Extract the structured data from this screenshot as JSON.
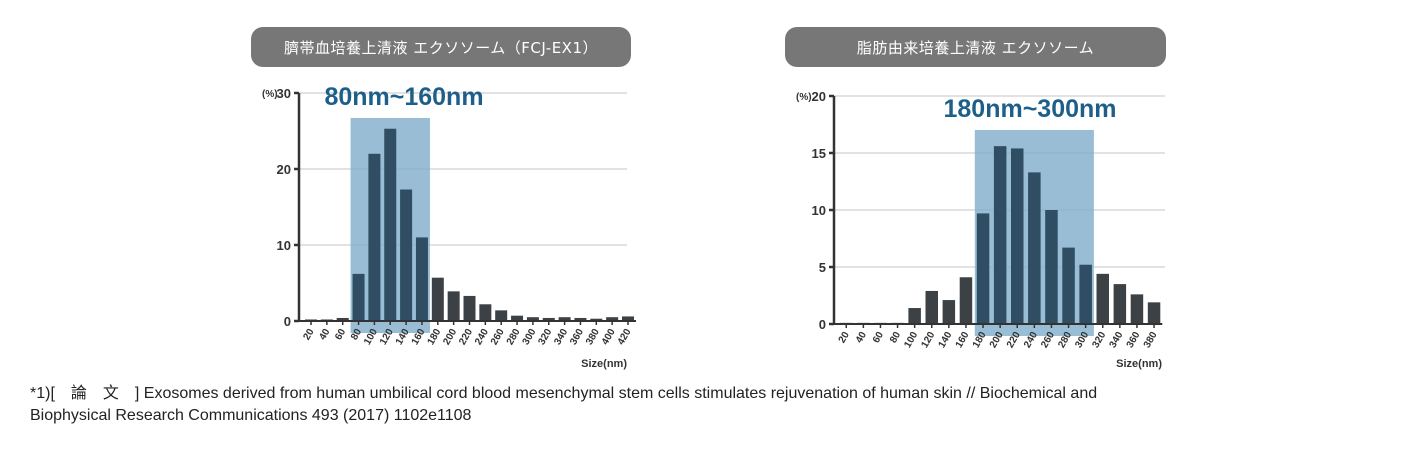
{
  "chart_data": [
    {
      "type": "bar",
      "title": "臍帯血培養上清液 エクソソーム（FCJ-EX1）",
      "unit_label": "(%)",
      "xlabel": "Size(nm)",
      "highlight_label": "80nm~160nm",
      "highlight_range": [
        80,
        160
      ],
      "ylim": [
        0,
        30
      ],
      "yticks": [
        0,
        10,
        20,
        30
      ],
      "categories": [
        "20",
        "40",
        "60",
        "80",
        "100",
        "120",
        "140",
        "160",
        "180",
        "200",
        "220",
        "240",
        "260",
        "280",
        "300",
        "320",
        "340",
        "360",
        "380",
        "400",
        "420"
      ],
      "values": [
        0.2,
        0.2,
        0.4,
        6.2,
        22.0,
        25.3,
        17.3,
        11.0,
        5.7,
        3.9,
        3.3,
        2.2,
        1.4,
        0.7,
        0.5,
        0.4,
        0.5,
        0.4,
        0.3,
        0.5,
        0.6
      ],
      "grid": true
    },
    {
      "type": "bar",
      "title": "脂肪由来培養上清液 エクソソーム",
      "unit_label": "(%)",
      "xlabel": "Size(nm)",
      "highlight_label": "180nm~300nm",
      "highlight_range": [
        180,
        300
      ],
      "ylim": [
        0,
        20
      ],
      "yticks": [
        0,
        5,
        10,
        15,
        20
      ],
      "categories": [
        "20",
        "40",
        "60",
        "80",
        "100",
        "120",
        "140",
        "160",
        "180",
        "200",
        "220",
        "240",
        "260",
        "280",
        "300",
        "320",
        "340",
        "360",
        "380"
      ],
      "values": [
        0.1,
        0.1,
        0.1,
        0.1,
        1.4,
        2.9,
        2.1,
        4.1,
        9.7,
        15.6,
        15.4,
        13.3,
        10.0,
        6.7,
        5.2,
        4.4,
        3.5,
        2.6,
        1.9
      ],
      "grid": true
    }
  ],
  "footnote": {
    "line1": "*1)[　論　文　] Exosomes derived from human umbilical cord blood mesenchymal stem cells stimulates  rejuvenation of human skin // Biochemical and",
    "line2": "Biophysical Research Communications 493 (2017) 1102e1108"
  },
  "colors": {
    "bar": "#3c4145",
    "bar_highlight": "#2f4d63",
    "highlight_box": "#86b2cc",
    "highlight_text": "#1e5f8a",
    "pill": "#777777",
    "grid": "#d8d8d8"
  }
}
